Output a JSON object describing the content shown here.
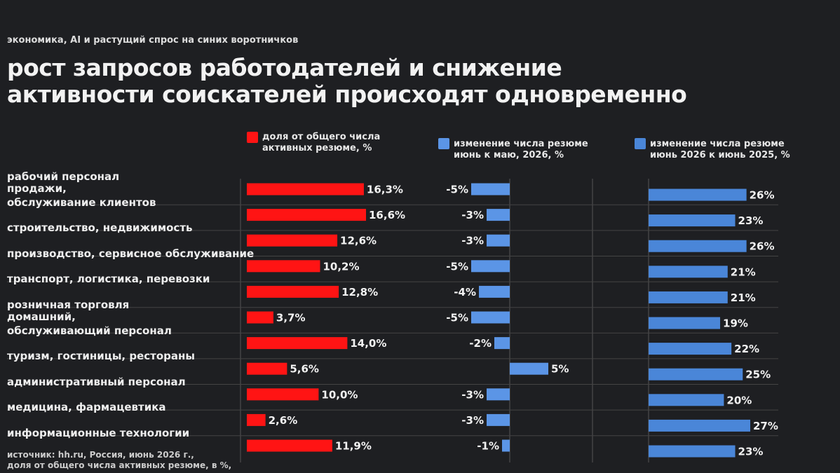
{
  "chart_data": {
    "type": "bar",
    "orientation": "horizontal",
    "subtitle": "экономика, AI и растущий спрос на синих воротничков",
    "title": "рост запросов работодателей и снижение активности соискателей происходят одновременно",
    "categories": [
      "рабочий персонал",
      "продажи,\nобслуживание клиентов",
      "строительство, недвижимость",
      "производство, сервисное обслуживание",
      "транспорт, логистика, перевозки",
      "розничная торговля",
      "домашний,\nобслуживающий персонал",
      "туризм, гостиницы, рестораны",
      "административный персонал",
      "медицина, фармацевтика",
      "информационные технологии"
    ],
    "series": [
      {
        "name": "доля от общего числа\nактивных резюме, %",
        "color": "#ff1414",
        "values": [
          16.3,
          16.6,
          12.6,
          10.2,
          12.8,
          3.7,
          14.0,
          5.6,
          10.0,
          2.6,
          11.9
        ],
        "value_labels": [
          "16,3%",
          "16,6%",
          "12,6%",
          "10,2%",
          "12,8%",
          "3,7%",
          "14,0%",
          "5,6%",
          "10,0%",
          "2,6%",
          "11,9%"
        ]
      },
      {
        "name": "изменение числа резюме\nиюнь к маю, 2026, %",
        "color": "#5b95e6",
        "values": [
          -5,
          -3,
          -3,
          -5,
          -4,
          -5,
          -2,
          5,
          -3,
          -3,
          -1
        ],
        "value_labels": [
          "-5%",
          "-3%",
          "-3%",
          "-5%",
          "-4%",
          "-5%",
          "-2%",
          "5%",
          "-3%",
          "-3%",
          "-1%"
        ]
      },
      {
        "name": "изменение числа резюме\nиюнь 2026 к июнь 2025, %",
        "color": "#4a86d8",
        "values": [
          26,
          23,
          26,
          21,
          21,
          19,
          22,
          25,
          20,
          27,
          23
        ],
        "value_labels": [
          "26%",
          "23%",
          "26%",
          "21%",
          "21%",
          "19%",
          "22%",
          "25%",
          "20%",
          "27%",
          "23%"
        ]
      }
    ],
    "source": "источник: hh.ru, Россия,  июнь 2026 г.,\nдоля от общего числа активных резюме, в %,"
  }
}
